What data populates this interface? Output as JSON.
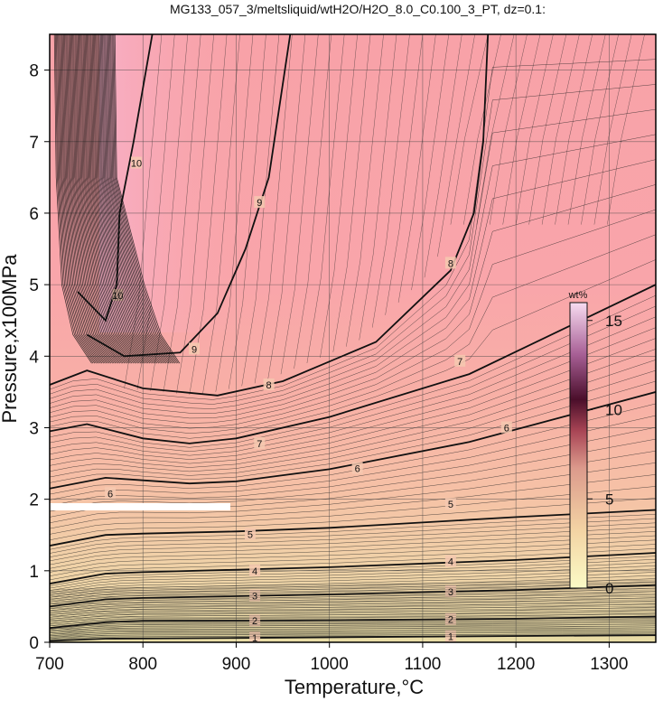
{
  "chart_data": {
    "type": "contour",
    "title": "MG133_057_3/meltsliquid/wtH2O/H2O_8.0_C0.100_3_PT, dz=0.1:",
    "xlabel": "Temperature,°C",
    "ylabel": "Pressure,x100MPa",
    "xlim": [
      700,
      1350
    ],
    "ylim": [
      0,
      8.5
    ],
    "xticks": [
      700,
      800,
      900,
      1000,
      1100,
      1200,
      1300
    ],
    "yticks": [
      0,
      1,
      2,
      3,
      4,
      5,
      6,
      7,
      8
    ],
    "grid": true,
    "colorbar": {
      "title": "wt%",
      "ticks": [
        0,
        5,
        10,
        15
      ],
      "range": [
        0,
        16
      ],
      "placement": "right-inside",
      "colors": [
        "#fdfdc8",
        "#f5d9a6",
        "#e8a98e",
        "#b8505a",
        "#4a0e2a",
        "#b06aa0",
        "#f7d6ef"
      ]
    },
    "colors": {
      "low": "#eee3b0",
      "mid": "#f4b49e",
      "high": "#f9a3ab",
      "peak": "#f5b3cf",
      "contour": "#111111",
      "region": "#ffffff"
    },
    "contours": [
      {
        "level": 1,
        "points": [
          [
            700,
            0.02
          ],
          [
            760,
            0.05
          ],
          [
            900,
            0.06
          ],
          [
            1100,
            0.08
          ],
          [
            1350,
            0.1
          ]
        ],
        "labels": [
          [
            920,
            0.06
          ],
          [
            1130,
            0.08
          ]
        ]
      },
      {
        "level": 2,
        "points": [
          [
            700,
            0.2
          ],
          [
            760,
            0.28
          ],
          [
            800,
            0.3
          ],
          [
            1000,
            0.31
          ],
          [
            1200,
            0.33
          ],
          [
            1350,
            0.36
          ]
        ],
        "labels": [
          [
            920,
            0.3
          ],
          [
            1130,
            0.32
          ]
        ]
      },
      {
        "level": 3,
        "points": [
          [
            700,
            0.5
          ],
          [
            760,
            0.6
          ],
          [
            800,
            0.62
          ],
          [
            1000,
            0.67
          ],
          [
            1200,
            0.73
          ],
          [
            1350,
            0.8
          ]
        ],
        "labels": [
          [
            920,
            0.65
          ],
          [
            1130,
            0.71
          ]
        ]
      },
      {
        "level": 4,
        "points": [
          [
            700,
            0.82
          ],
          [
            760,
            0.96
          ],
          [
            800,
            0.98
          ],
          [
            1000,
            1.05
          ],
          [
            1200,
            1.15
          ],
          [
            1350,
            1.25
          ]
        ],
        "labels": [
          [
            920,
            1.0
          ],
          [
            1130,
            1.13
          ]
        ]
      },
      {
        "level": 5,
        "points": [
          [
            700,
            1.35
          ],
          [
            760,
            1.5
          ],
          [
            800,
            1.52
          ],
          [
            900,
            1.55
          ],
          [
            1000,
            1.6
          ],
          [
            1200,
            1.75
          ],
          [
            1350,
            1.85
          ]
        ],
        "labels": [
          [
            915,
            1.51
          ],
          [
            1130,
            1.93
          ]
        ]
      },
      {
        "level": 6,
        "points": [
          [
            700,
            2.15
          ],
          [
            760,
            2.3
          ],
          [
            850,
            2.22
          ],
          [
            900,
            2.25
          ],
          [
            1000,
            2.42
          ],
          [
            1150,
            2.8
          ],
          [
            1350,
            3.5
          ]
        ],
        "labels": [
          [
            765,
            2.08
          ],
          [
            1030,
            2.43
          ],
          [
            1190,
            3.0
          ]
        ]
      },
      {
        "level": 7,
        "points": [
          [
            700,
            2.95
          ],
          [
            740,
            3.05
          ],
          [
            800,
            2.85
          ],
          [
            850,
            2.78
          ],
          [
            900,
            2.85
          ],
          [
            1000,
            3.15
          ],
          [
            1150,
            3.75
          ],
          [
            1350,
            5.0
          ]
        ],
        "labels": [
          [
            925,
            2.78
          ],
          [
            1140,
            3.93
          ]
        ]
      },
      {
        "level": 8,
        "points": [
          [
            700,
            3.6
          ],
          [
            740,
            3.8
          ],
          [
            800,
            3.55
          ],
          [
            880,
            3.45
          ],
          [
            950,
            3.65
          ],
          [
            1050,
            4.2
          ],
          [
            1130,
            5.2
          ],
          [
            1155,
            6.0
          ],
          [
            1165,
            7.0
          ],
          [
            1170,
            8.5
          ]
        ],
        "labels": [
          [
            935,
            3.6
          ],
          [
            1130,
            5.3
          ]
        ]
      },
      {
        "level": 9,
        "points": [
          [
            740,
            4.3
          ],
          [
            780,
            4.0
          ],
          [
            840,
            4.05
          ],
          [
            880,
            4.6
          ],
          [
            910,
            5.5
          ],
          [
            935,
            6.5
          ],
          [
            958,
            8.5
          ]
        ],
        "labels": [
          [
            855,
            4.1
          ],
          [
            925,
            6.15
          ]
        ]
      },
      {
        "level": 10,
        "points": [
          [
            730,
            4.9
          ],
          [
            760,
            4.5
          ],
          [
            772,
            5.0
          ],
          [
            775,
            6.0
          ],
          [
            790,
            7.0
          ],
          [
            810,
            8.5
          ]
        ],
        "labels": [
          [
            773,
            4.85
          ],
          [
            793,
            6.7
          ]
        ]
      }
    ],
    "annotation": {
      "type": "white band",
      "x": [
        700,
        895
      ],
      "y": 1.9
    }
  }
}
